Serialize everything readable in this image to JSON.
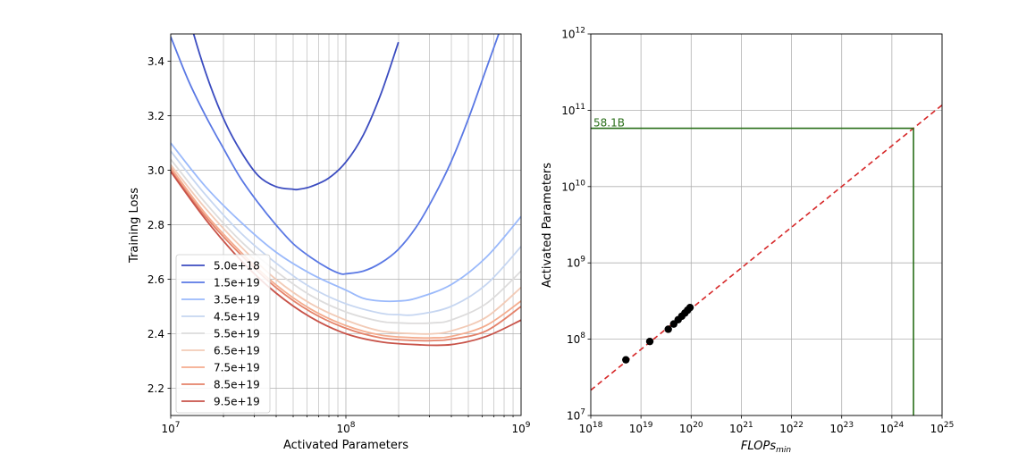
{
  "chart_data": [
    {
      "type": "line",
      "xlabel": "Activated Parameters",
      "ylabel": "Training Loss",
      "x_scale": "log",
      "xlim": [
        10000000,
        1000000000
      ],
      "ylim": [
        2.1,
        3.5
      ],
      "x_ticks": [
        {
          "value": 10000000,
          "base": "10",
          "exp": "7"
        },
        {
          "value": 100000000,
          "base": "10",
          "exp": "8"
        },
        {
          "value": 1000000000,
          "base": "10",
          "exp": "9"
        }
      ],
      "y_ticks": [
        {
          "value": 2.2,
          "label": "2.2"
        },
        {
          "value": 2.4,
          "label": "2.4"
        },
        {
          "value": 2.6,
          "label": "2.6"
        },
        {
          "value": 2.8,
          "label": "2.8"
        },
        {
          "value": 3.0,
          "label": "3.0"
        },
        {
          "value": 3.2,
          "label": "3.2"
        },
        {
          "value": 3.4,
          "label": "3.4"
        }
      ],
      "grid": true,
      "legend_position": "lower-left",
      "series": [
        {
          "name": "5.0e+18",
          "color": "#3b4cc0",
          "x": [
            10000000,
            12600000,
            15800000,
            20000000,
            25100000,
            31600000,
            39800000,
            50100000,
            53700000,
            63100000,
            79400000,
            100000000,
            125900000,
            158500000,
            199500000
          ],
          "y": [
            3.83,
            3.57,
            3.36,
            3.19,
            3.07,
            2.98,
            2.94,
            2.93,
            2.93,
            2.94,
            2.97,
            3.03,
            3.13,
            3.28,
            3.47
          ]
        },
        {
          "name": "1.5e+19",
          "color": "#5a78e4",
          "x": [
            10000000,
            12600000,
            15800000,
            20000000,
            25100000,
            31600000,
            39800000,
            50100000,
            63100000,
            79400000,
            93300000,
            100000000,
            125900000,
            158500000,
            199500000,
            251200000,
            316200000,
            398100000,
            501200000,
            631000000,
            794300000,
            900000000
          ],
          "y": [
            3.49,
            3.33,
            3.2,
            3.08,
            2.97,
            2.88,
            2.8,
            2.73,
            2.68,
            2.64,
            2.62,
            2.62,
            2.63,
            2.66,
            2.71,
            2.79,
            2.9,
            3.03,
            3.19,
            3.37,
            3.55,
            3.65
          ]
        },
        {
          "name": "3.5e+19",
          "color": "#9ab9fb",
          "x": [
            10000000,
            15800000,
            25100000,
            39800000,
            63100000,
            100000000,
            125900000,
            158500000,
            199500000,
            251200000,
            398100000,
            631000000,
            1000000000
          ],
          "y": [
            3.1,
            2.94,
            2.81,
            2.7,
            2.62,
            2.56,
            2.53,
            2.52,
            2.52,
            2.53,
            2.58,
            2.68,
            2.83
          ]
        },
        {
          "name": "4.5e+19",
          "color": "#c6d6f1",
          "x": [
            10000000,
            15800000,
            25100000,
            39800000,
            63100000,
            100000000,
            158500000,
            199500000,
            251200000,
            398100000,
            631000000,
            1000000000
          ],
          "y": [
            3.07,
            2.91,
            2.77,
            2.66,
            2.57,
            2.51,
            2.475,
            2.47,
            2.47,
            2.5,
            2.58,
            2.72
          ]
        },
        {
          "name": "5.5e+19",
          "color": "#dddcdc",
          "x": [
            10000000,
            15800000,
            25100000,
            39800000,
            63100000,
            100000000,
            158500000,
            199500000,
            251200000,
            316200000,
            398100000,
            631000000,
            1000000000
          ],
          "y": [
            3.04,
            2.88,
            2.74,
            2.63,
            2.54,
            2.48,
            2.445,
            2.44,
            2.438,
            2.44,
            2.45,
            2.51,
            2.63
          ]
        },
        {
          "name": "6.5e+19",
          "color": "#f2cbb7",
          "x": [
            10000000,
            15800000,
            25100000,
            39800000,
            63100000,
            100000000,
            158500000,
            251200000,
            316200000,
            398100000,
            631000000,
            1000000000
          ],
          "y": [
            3.02,
            2.86,
            2.72,
            2.6,
            2.51,
            2.45,
            2.41,
            2.4,
            2.4,
            2.41,
            2.46,
            2.57
          ]
        },
        {
          "name": "7.5e+19",
          "color": "#f4ac8e",
          "x": [
            10000000,
            15800000,
            25100000,
            39800000,
            63100000,
            100000000,
            158500000,
            251200000,
            316200000,
            398100000,
            631000000,
            1000000000
          ],
          "y": [
            3.01,
            2.84,
            2.7,
            2.58,
            2.49,
            2.43,
            2.395,
            2.385,
            2.385,
            2.39,
            2.43,
            2.52
          ]
        },
        {
          "name": "8.5e+19",
          "color": "#e4826a",
          "x": [
            10000000,
            15800000,
            25100000,
            39800000,
            63100000,
            100000000,
            158500000,
            251200000,
            316200000,
            398100000,
            631000000,
            1000000000
          ],
          "y": [
            3.0,
            2.83,
            2.69,
            2.57,
            2.48,
            2.42,
            2.385,
            2.375,
            2.375,
            2.38,
            2.41,
            2.5
          ]
        },
        {
          "name": "9.5e+19",
          "color": "#c85349",
          "x": [
            10000000,
            15800000,
            25100000,
            39800000,
            63100000,
            100000000,
            158500000,
            251200000,
            398100000,
            631000000,
            1000000000
          ],
          "y": [
            2.995,
            2.82,
            2.67,
            2.55,
            2.46,
            2.4,
            2.37,
            2.36,
            2.36,
            2.39,
            2.45
          ]
        }
      ]
    },
    {
      "type": "scatter",
      "xlabel_main": "FLOPs",
      "xlabel_sub": "min",
      "ylabel": "Activated Parameters",
      "x_scale": "log",
      "y_scale": "log",
      "xlim": [
        1e+18,
        1e+25
      ],
      "ylim": [
        10000000.0,
        1000000000000.0
      ],
      "x_ticks": [
        {
          "value": 1e+18,
          "base": "10",
          "exp": "18"
        },
        {
          "value": 1e+19,
          "base": "10",
          "exp": "19"
        },
        {
          "value": 1e+20,
          "base": "10",
          "exp": "20"
        },
        {
          "value": 1e+21,
          "base": "10",
          "exp": "21"
        },
        {
          "value": 1e+22,
          "base": "10",
          "exp": "22"
        },
        {
          "value": 1e+23,
          "base": "10",
          "exp": "23"
        },
        {
          "value": 1e+24,
          "base": "10",
          "exp": "24"
        },
        {
          "value": 1e+25,
          "base": "10",
          "exp": "25"
        }
      ],
      "y_ticks": [
        {
          "value": 10000000.0,
          "base": "10",
          "exp": "7"
        },
        {
          "value": 100000000.0,
          "base": "10",
          "exp": "8"
        },
        {
          "value": 1000000000.0,
          "base": "10",
          "exp": "9"
        },
        {
          "value": 10000000000.0,
          "base": "10",
          "exp": "10"
        },
        {
          "value": 100000000000.0,
          "base": "10",
          "exp": "11"
        },
        {
          "value": 1000000000000.0,
          "base": "10",
          "exp": "12"
        }
      ],
      "grid": true,
      "points": {
        "color": "#000000",
        "x": [
          5e+18,
          1.5e+19,
          3.5e+19,
          4.5e+19,
          5.5e+19,
          6.5e+19,
          7.5e+19,
          8.5e+19,
          9.5e+19
        ],
        "y": [
          53700000,
          93300000,
          135000000,
          158000000,
          180000000,
          200000000,
          220000000,
          240000000,
          260000000
        ]
      },
      "fit_line": {
        "color": "#d62728",
        "style": "dashed",
        "x": [
          1e+18,
          1e+25
        ],
        "y": [
          21500000,
          117000000000.0
        ]
      },
      "projection": {
        "color": "#2a6f1a",
        "x": 2.7e+24,
        "y": 58100000000,
        "label": "58.1B"
      }
    }
  ]
}
